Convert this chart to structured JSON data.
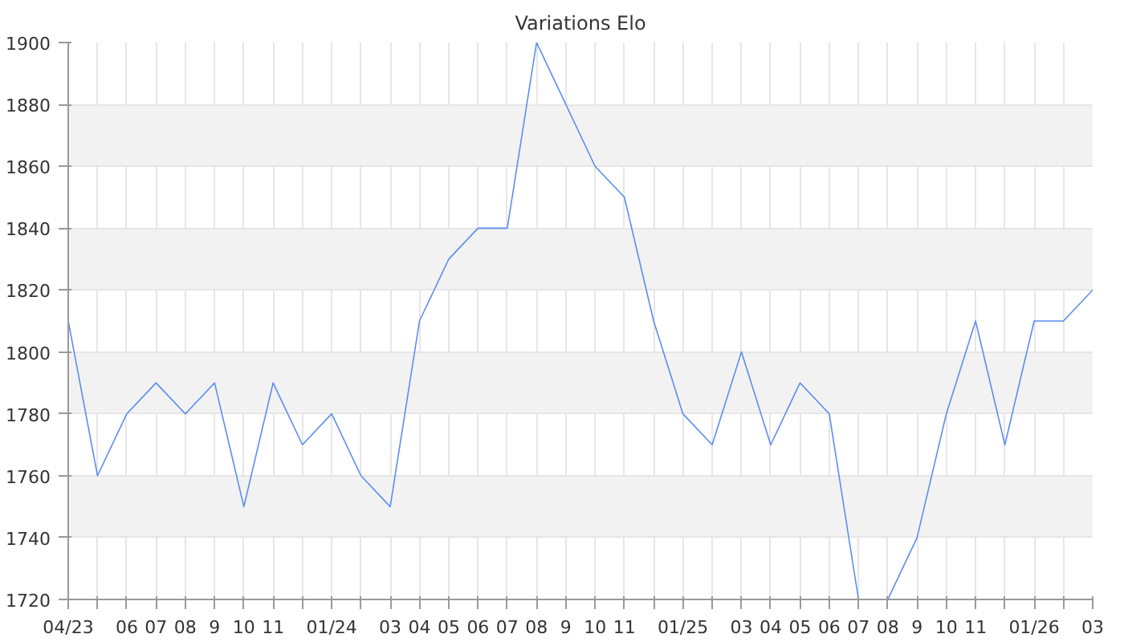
{
  "chart_data": {
    "type": "line",
    "title": "Variations Elo",
    "categories": [
      "04/23",
      null,
      "06",
      "07",
      "08",
      "9",
      "10",
      "11",
      null,
      "01/24",
      null,
      "03",
      "04",
      "05",
      "06",
      "07",
      "08",
      "9",
      "10",
      "11",
      null,
      "01/25",
      null,
      "03",
      "04",
      "05",
      "06",
      "07",
      "08",
      "9",
      "10",
      "11",
      null,
      "01/26",
      null,
      "03"
    ],
    "series": [
      {
        "color": "#5b8def",
        "values": [
          1810,
          1760,
          1780,
          1790,
          1780,
          1790,
          1750,
          1790,
          1770,
          1780,
          1760,
          1750,
          1810,
          1830,
          1840,
          1840,
          1900,
          1880,
          1860,
          1850,
          1810,
          1780,
          1770,
          1800,
          1770,
          1790,
          1780,
          1720,
          1720,
          1740,
          1780,
          1810,
          1770,
          1810,
          1810,
          1820
        ]
      }
    ],
    "ylim": [
      1720,
      1900
    ],
    "yticks": [
      1720,
      1740,
      1760,
      1780,
      1800,
      1820,
      1840,
      1860,
      1880,
      1900
    ],
    "grid": true,
    "marker": "none",
    "line_style": "solid"
  }
}
